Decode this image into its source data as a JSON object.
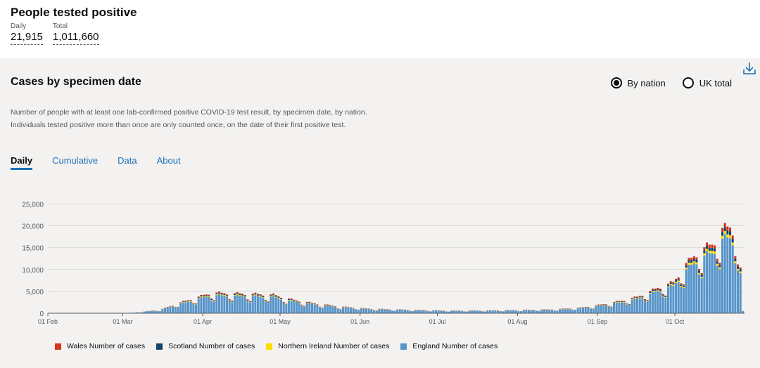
{
  "headline": {
    "title": "People tested positive",
    "metrics": [
      {
        "label": "Daily",
        "value": "21,915"
      },
      {
        "label": "Total",
        "value": "1,011,660"
      }
    ]
  },
  "card": {
    "title": "Cases by specimen date",
    "radios": [
      {
        "label": "By nation",
        "selected": true
      },
      {
        "label": "UK total",
        "selected": false
      }
    ],
    "description": "Number of people with at least one lab-confirmed positive COVID-19 test result, by specimen date, by nation. Individuals tested positive more than once are only counted once, on the date of their first positive test.",
    "tabs": [
      {
        "label": "Daily",
        "active": true
      },
      {
        "label": "Cumulative",
        "active": false
      },
      {
        "label": "Data",
        "active": false
      },
      {
        "label": "About",
        "active": false
      }
    ],
    "download_icon": "download-icon"
  },
  "chart_data": {
    "type": "bar",
    "stacked": true,
    "x_start": "2020-02-01",
    "x_end": "2020-10-27",
    "x_ticks": [
      "01 Feb",
      "01 Mar",
      "01 Apr",
      "01 May",
      "01 Jun",
      "01 Jul",
      "01 Aug",
      "01 Sep",
      "01 Oct"
    ],
    "y_ticks": [
      "0",
      "5,000",
      "10,000",
      "15,000",
      "20,000",
      "25,000"
    ],
    "ylim": [
      0,
      27000
    ],
    "grid": true,
    "legend_position": "bottom",
    "anchors_england_total": [
      [
        "2020-02-01",
        0
      ],
      [
        "2020-02-28",
        40
      ],
      [
        "2020-03-05",
        150
      ],
      [
        "2020-03-15",
        800
      ],
      [
        "2020-03-22",
        2300
      ],
      [
        "2020-03-30",
        3800
      ],
      [
        "2020-04-04",
        4800
      ],
      [
        "2020-04-12",
        4600
      ],
      [
        "2020-04-20",
        4500
      ],
      [
        "2020-04-28",
        4300
      ],
      [
        "2020-05-05",
        3200
      ],
      [
        "2020-05-15",
        2200
      ],
      [
        "2020-05-25",
        1500
      ],
      [
        "2020-06-05",
        1050
      ],
      [
        "2020-06-20",
        800
      ],
      [
        "2020-07-05",
        600
      ],
      [
        "2020-07-20",
        650
      ],
      [
        "2020-08-01",
        750
      ],
      [
        "2020-08-15",
        900
      ],
      [
        "2020-08-25",
        1300
      ],
      [
        "2020-09-01",
        1900
      ],
      [
        "2020-09-10",
        2900
      ],
      [
        "2020-09-16",
        3800
      ],
      [
        "2020-09-24",
        5900
      ],
      [
        "2020-09-30",
        7200
      ],
      [
        "2020-10-05",
        11500
      ],
      [
        "2020-10-10",
        14500
      ],
      [
        "2020-10-15",
        16000
      ],
      [
        "2020-10-19",
        19500
      ],
      [
        "2020-10-22",
        20000
      ],
      [
        "2020-10-25",
        18000
      ],
      [
        "2020-10-26",
        10500
      ],
      [
        "2020-10-27",
        500
      ]
    ],
    "weekly_factors": [
      0.62,
      1.0,
      1.05,
      1.0,
      0.98,
      0.92,
      0.7
    ],
    "series": [
      {
        "name": "Wales Number of cases",
        "color": "#d4351c",
        "share": 0.045
      },
      {
        "name": "Scotland Number of cases",
        "color": "#12436d",
        "share": 0.045
      },
      {
        "name": "Northern Ireland Number of cases",
        "color": "#ffdd00",
        "share": 0.035
      },
      {
        "name": "England Number of cases",
        "color": "#5694ca",
        "share": 0.875
      }
    ]
  }
}
